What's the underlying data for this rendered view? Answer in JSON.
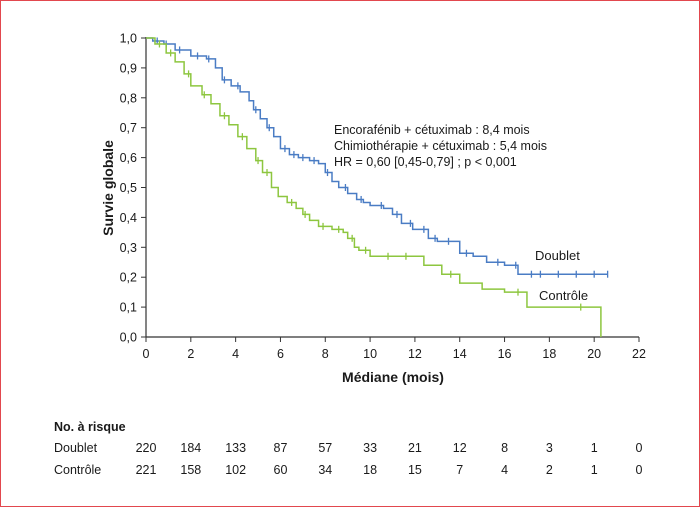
{
  "chart_data": {
    "type": "line",
    "subtype": "kaplan-meier",
    "xlabel": "Médiane (mois)",
    "ylabel": "Survie globale",
    "xlim": [
      0,
      22
    ],
    "ylim": [
      0,
      1
    ],
    "x_ticks": [
      "0",
      "2",
      "4",
      "6",
      "8",
      "10",
      "12",
      "14",
      "16",
      "18",
      "20",
      "22"
    ],
    "y_ticks": [
      "0,0",
      "0,1",
      "0,2",
      "0,3",
      "0,4",
      "0,5",
      "0,6",
      "0,7",
      "0,8",
      "0,9",
      "1,0"
    ],
    "grid": false,
    "annotations": [
      "Encorafénib + cétuximab : 8,4 mois",
      "Chimiothérapie + cétuximab : 5,4 mois",
      "HR = 0,60 [0,45-0,79] ; p < 0,001"
    ],
    "series": [
      {
        "name": "Doublet",
        "color": "#4a7cc4",
        "x": [
          0,
          0.3,
          0.8,
          1.3,
          2.0,
          2.7,
          3.1,
          3.4,
          3.8,
          4.2,
          4.6,
          4.8,
          5.1,
          5.4,
          5.7,
          6.0,
          6.4,
          6.8,
          7.3,
          7.7,
          8.0,
          8.3,
          8.6,
          9.0,
          9.4,
          9.7,
          10.0,
          10.6,
          11.0,
          11.4,
          11.9,
          12.6,
          13.0,
          14.0,
          14.6,
          15.2,
          16.0,
          16.6,
          17.0,
          18.0,
          20.6
        ],
        "y": [
          1.0,
          0.99,
          0.98,
          0.96,
          0.94,
          0.93,
          0.9,
          0.86,
          0.84,
          0.82,
          0.79,
          0.76,
          0.73,
          0.7,
          0.67,
          0.63,
          0.61,
          0.6,
          0.59,
          0.58,
          0.55,
          0.52,
          0.5,
          0.48,
          0.46,
          0.45,
          0.44,
          0.43,
          0.41,
          0.38,
          0.36,
          0.33,
          0.32,
          0.28,
          0.27,
          0.25,
          0.24,
          0.21,
          0.21,
          0.21,
          0.21
        ],
        "censor_x": [
          0.5,
          0.9,
          1.5,
          2.3,
          2.8,
          3.5,
          4.1,
          4.9,
          5.5,
          6.2,
          6.6,
          7.0,
          7.5,
          8.1,
          8.9,
          9.6,
          10.5,
          11.2,
          11.8,
          12.4,
          12.9,
          13.5,
          14.3,
          15.7,
          16.5,
          17.2,
          17.6,
          18.4,
          19.2,
          20.0,
          20.6
        ],
        "risk": [
          "220",
          "184",
          "133",
          "87",
          "57",
          "33",
          "21",
          "12",
          "8",
          "3",
          "1",
          "0"
        ]
      },
      {
        "name": "Contrôle",
        "color": "#8dc63f",
        "x": [
          0,
          0.4,
          0.9,
          1.3,
          1.7,
          2.0,
          2.5,
          2.9,
          3.3,
          3.7,
          4.1,
          4.5,
          4.9,
          5.2,
          5.6,
          5.9,
          6.3,
          6.7,
          7.0,
          7.3,
          7.7,
          8.3,
          8.8,
          9.0,
          9.3,
          9.5,
          10.0,
          12.0,
          12.4,
          13.2,
          14.0,
          15.0,
          16.0,
          17.0,
          19.0,
          20.3
        ],
        "y": [
          1.0,
          0.98,
          0.95,
          0.92,
          0.88,
          0.84,
          0.81,
          0.78,
          0.74,
          0.71,
          0.67,
          0.63,
          0.59,
          0.55,
          0.5,
          0.47,
          0.45,
          0.43,
          0.41,
          0.39,
          0.37,
          0.36,
          0.35,
          0.33,
          0.3,
          0.29,
          0.27,
          0.27,
          0.24,
          0.21,
          0.18,
          0.16,
          0.15,
          0.1,
          0.1,
          0.0
        ],
        "censor_x": [
          0.6,
          1.1,
          1.9,
          2.6,
          3.5,
          4.3,
          5.0,
          5.4,
          6.5,
          7.1,
          7.9,
          8.6,
          9.2,
          9.8,
          10.8,
          11.6,
          13.6,
          16.6,
          19.4
        ],
        "risk": [
          "221",
          "158",
          "102",
          "60",
          "34",
          "18",
          "15",
          "7",
          "4",
          "2",
          "1",
          "0"
        ]
      }
    ],
    "risk_table": {
      "title": "No. à risque",
      "row_labels": [
        "Doublet",
        "Contrôle"
      ]
    }
  }
}
